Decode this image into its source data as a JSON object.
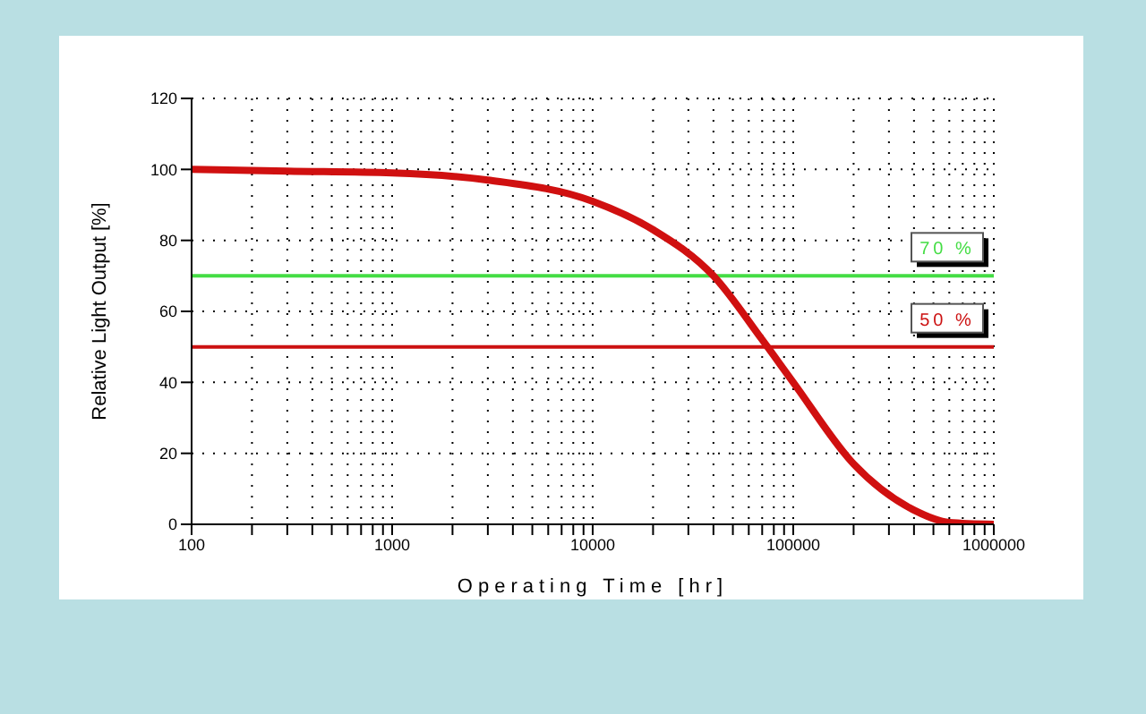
{
  "chart_data": {
    "type": "line",
    "xlabel": "Operating Time [hr]",
    "ylabel": "Relative Light Output [%]",
    "x": [
      100,
      300,
      1000,
      3000,
      10000,
      20000,
      40000,
      70000,
      100000,
      200000,
      400000,
      600000,
      1000000
    ],
    "series": [
      {
        "color": "#d01010",
        "values": [
          100,
          99.5,
          99,
          97,
          91,
          83,
          70,
          52,
          40,
          17,
          4,
          0.5,
          0
        ]
      }
    ],
    "xlim": [
      100,
      1000000
    ],
    "xticks": [
      100,
      {
        "value": 200,
        "label": null
      },
      {
        "value": 300,
        "label": null
      },
      {
        "value": 400,
        "label": null
      },
      {
        "value": 500,
        "label": null
      },
      {
        "value": 600,
        "label": null
      },
      {
        "value": 700,
        "label": null
      },
      {
        "value": 800,
        "label": null
      },
      {
        "value": 900,
        "label": null
      },
      1000,
      {
        "value": 2000,
        "label": null
      },
      {
        "value": 3000,
        "label": null
      },
      {
        "value": 4000,
        "label": null
      },
      {
        "value": 5000,
        "label": null
      },
      {
        "value": 6000,
        "label": null
      },
      {
        "value": 7000,
        "label": null
      },
      {
        "value": 8000,
        "label": null
      },
      {
        "value": 9000,
        "label": null
      },
      10000,
      {
        "value": 20000,
        "label": null
      },
      {
        "value": 30000,
        "label": null
      },
      {
        "value": 40000,
        "label": null
      },
      {
        "value": 50000,
        "label": null
      },
      {
        "value": 60000,
        "label": null
      },
      {
        "value": 70000,
        "label": null
      },
      {
        "value": 80000,
        "label": null
      },
      {
        "value": 90000,
        "label": null
      },
      100000,
      {
        "value": 200000,
        "label": null
      },
      {
        "value": 300000,
        "label": null
      },
      {
        "value": 400000,
        "label": null
      },
      {
        "value": 500000,
        "label": null
      },
      {
        "value": 600000,
        "label": null
      },
      {
        "value": 700000,
        "label": null
      },
      {
        "value": 800000,
        "label": null
      },
      {
        "value": 900000,
        "label": null
      },
      1000000
    ],
    "ylim": [
      0,
      120
    ],
    "yticks": [
      0,
      20,
      40,
      60,
      80,
      100,
      120
    ],
    "log": "x",
    "grid": true,
    "line_style": "solid",
    "marker": "none",
    "legend": false,
    "ref_lines": [
      {
        "axis": "y",
        "value": 70,
        "label": "70 %",
        "color": "#44dd44"
      },
      {
        "axis": "y",
        "value": 50,
        "label": "50 %",
        "color": "#cc1111"
      }
    ]
  }
}
